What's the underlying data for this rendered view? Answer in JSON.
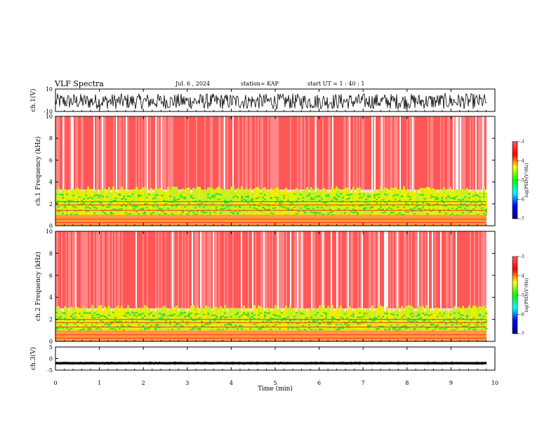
{
  "header": {
    "title": "VLF Spectra",
    "date": "Jul. 6 , 2024",
    "station": "station= KAP",
    "start": "start UT = 1 : 40 : 1"
  },
  "colors": {
    "background_spectrum": "#ff3333",
    "band_yellow": "#e8f000",
    "band_green": "#33e033",
    "waveform": "#000000"
  },
  "colorbar": {
    "label": "log(PSD)(V²/Hz)",
    "ticks": [
      "-3",
      "-4",
      "-5",
      "-6",
      "-7"
    ],
    "stops": [
      "#ff5a5a",
      "#ff0000",
      "#ffff00",
      "#00ff00",
      "#00ffff",
      "#0000ff",
      "#00008b"
    ]
  },
  "chart_data": [
    {
      "type": "line",
      "name": "ch1-waveform",
      "ylabel": "ch.1(V)",
      "ylim": [
        -10,
        10
      ],
      "yticks": [
        "10",
        "-10"
      ],
      "xlim": [
        0,
        10
      ],
      "description_values": {
        "typical_range": [
          -8,
          6
        ]
      }
    },
    {
      "type": "heatmap",
      "name": "ch1-spectrogram",
      "ylabel": "ch.1 Frequency (kHz)",
      "ylim": [
        0,
        10
      ],
      "yticks": [
        "0",
        "2",
        "4",
        "6",
        "8",
        "10"
      ],
      "xlim": [
        0,
        9.8
      ],
      "bands": [
        {
          "from": 3.3,
          "to": 10,
          "color": "red-white"
        },
        {
          "from": 1.0,
          "to": 3.3,
          "color": "yellow-green"
        },
        {
          "from": 0.0,
          "to": 1.0,
          "color": "red-yellow"
        }
      ],
      "lines_khz": [
        2.2,
        1.9,
        1.4,
        0.6,
        0.3
      ]
    },
    {
      "type": "heatmap",
      "name": "ch2-spectrogram",
      "ylabel": "ch.2 Frequency (kHz)",
      "ylim": [
        0,
        10
      ],
      "yticks": [
        "0",
        "2",
        "4",
        "6",
        "8",
        "10"
      ],
      "xlim": [
        0,
        9.8
      ],
      "bands": [
        {
          "from": 3.0,
          "to": 10,
          "color": "red-white"
        },
        {
          "from": 1.0,
          "to": 3.0,
          "color": "yellow-green"
        },
        {
          "from": 0.0,
          "to": 1.0,
          "color": "red-yellow"
        }
      ],
      "lines_khz": [
        2.0,
        1.7,
        1.3,
        0.6,
        0.3
      ]
    },
    {
      "type": "line",
      "name": "ch3-waveform",
      "ylabel": "ch.3(V)",
      "ylim": [
        -5,
        5
      ],
      "yticks": [
        "5",
        "0",
        "-5"
      ],
      "xlim": [
        0,
        10
      ],
      "description_values": {
        "typical_range": [
          -2.5,
          -1.5
        ]
      }
    }
  ],
  "xaxis": {
    "label": "Time (min)",
    "ticks": [
      "0",
      "1",
      "2",
      "3",
      "4",
      "5",
      "6",
      "7",
      "8",
      "9",
      "10"
    ]
  }
}
